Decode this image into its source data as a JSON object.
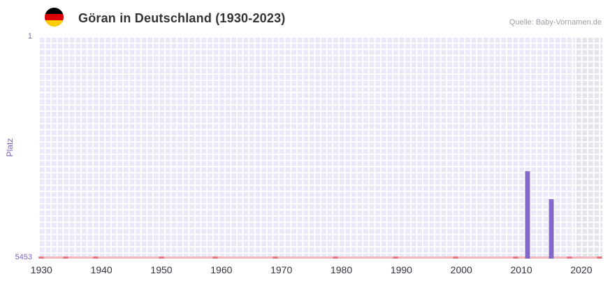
{
  "header": {
    "title": "Göran in Deutschland (1930-2023)",
    "flag": "german-flag",
    "source": "Quelle: Baby-Vornamen.de"
  },
  "chart_data": {
    "type": "bar",
    "title": "Göran in Deutschland (1930-2023)",
    "xlabel": "",
    "ylabel": "Platz",
    "y_axis": {
      "min": 1,
      "max": 5453,
      "inverted": true,
      "top_label": "1",
      "bottom_label": "5453"
    },
    "x_axis": {
      "start": 1930,
      "end": 2023,
      "tick_labels": [
        "1930",
        "1940",
        "1950",
        "1960",
        "1970",
        "1980",
        "1990",
        "2000",
        "2010",
        "2020"
      ]
    },
    "bars": [
      {
        "year": 2011,
        "rank": 3310
      },
      {
        "year": 2015,
        "rank": 3990
      }
    ],
    "markers": [
      {
        "year": 1930,
        "rank": 5400
      },
      {
        "year": 1934,
        "rank": 5400
      },
      {
        "year": 1939,
        "rank": 5400
      },
      {
        "year": 1950,
        "rank": 5400
      },
      {
        "year": 1959,
        "rank": 5400
      },
      {
        "year": 1969,
        "rank": 5400
      },
      {
        "year": 1979,
        "rank": 5400
      },
      {
        "year": 1989,
        "rank": 5400
      },
      {
        "year": 1999,
        "rank": 5400
      },
      {
        "year": 2009,
        "rank": 5400
      },
      {
        "year": 2018,
        "rank": 5400
      },
      {
        "year": 2023,
        "rank": 5400
      }
    ],
    "shaded_region": {
      "from_year": 2020,
      "to_year": 2023
    },
    "grid": true,
    "legend": false,
    "colors": {
      "bar": "#8468c8",
      "marker": "#e4737e",
      "axis_line": "#f3b6bb",
      "plot_bg": "#eae7f7",
      "shade_bg": "#e5e4ed",
      "grid": "#ffffff",
      "axis_text": "#7b63bd",
      "tick_text": "#33333f"
    }
  }
}
